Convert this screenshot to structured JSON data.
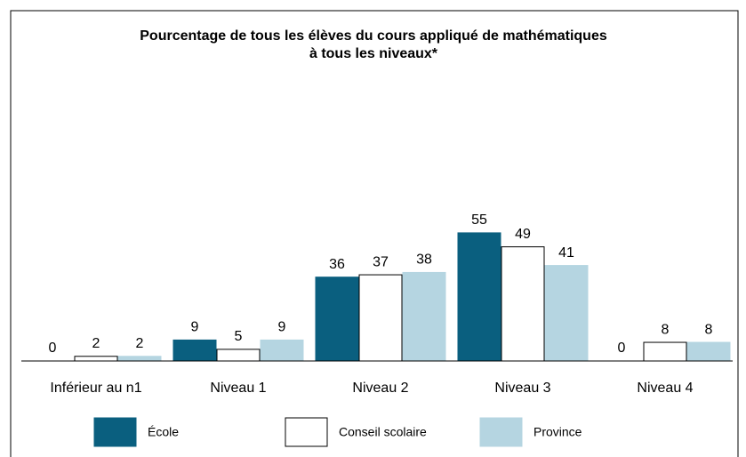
{
  "chart_data": {
    "type": "bar",
    "title": [
      "Pourcentage de tous les élèves du cours appliqué de mathématiques",
      "à tous les niveaux*"
    ],
    "categories": [
      "Inférieur au n1",
      "Niveau 1",
      "Niveau 2",
      "Niveau 3",
      "Niveau 4"
    ],
    "series": [
      {
        "name": "École",
        "color": "#0a5f7f",
        "values": [
          0,
          9,
          36,
          55,
          0
        ]
      },
      {
        "name": "Conseil scolaire",
        "color": "#ffffff",
        "values": [
          2,
          5,
          37,
          49,
          8
        ]
      },
      {
        "name": "Province",
        "color": "#b5d5e1",
        "values": [
          2,
          9,
          38,
          41,
          8
        ]
      }
    ],
    "ylim": [
      0,
      100
    ],
    "grid": false,
    "legend": "bottom"
  }
}
